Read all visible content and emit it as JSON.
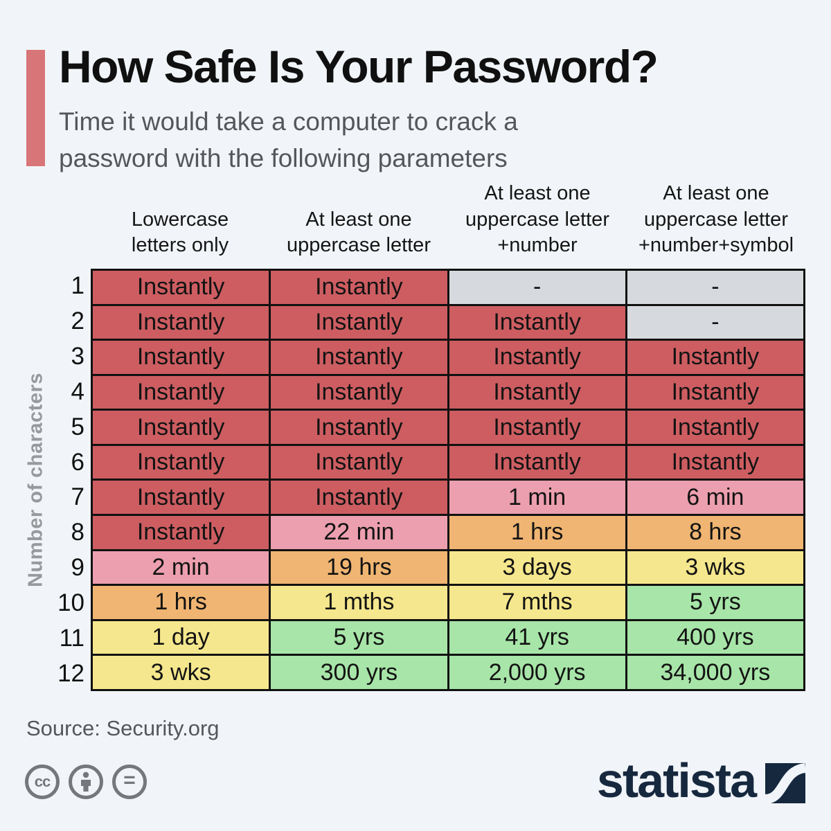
{
  "header": {
    "title": "How Safe Is Your Password?",
    "subtitle": "Time it would take a computer to crack a\npassword with the following parameters",
    "accent_color": "#d87578"
  },
  "chart_data": {
    "type": "table",
    "title": "How Safe Is Your Password?",
    "subtitle": "Time it would take a computer to crack a password with the following parameters",
    "row_axis_label": "Number of characters",
    "columns": [
      "Lowercase letters only",
      "At least one uppercase letter",
      "At least one uppercase letter +number",
      "At least one uppercase letter +number+symbol"
    ],
    "column_headers_display": [
      "Lowercase\nletters only",
      "At least one\nuppercase letter",
      "At least one\nuppercase letter\n+number",
      "At least one\nuppercase letter\n+number+symbol"
    ],
    "row_labels": [
      "1",
      "2",
      "3",
      "4",
      "5",
      "6",
      "7",
      "8",
      "9",
      "10",
      "11",
      "12"
    ],
    "values": [
      [
        "Instantly",
        "Instantly",
        "-",
        "-"
      ],
      [
        "Instantly",
        "Instantly",
        "Instantly",
        "-"
      ],
      [
        "Instantly",
        "Instantly",
        "Instantly",
        "Instantly"
      ],
      [
        "Instantly",
        "Instantly",
        "Instantly",
        "Instantly"
      ],
      [
        "Instantly",
        "Instantly",
        "Instantly",
        "Instantly"
      ],
      [
        "Instantly",
        "Instantly",
        "Instantly",
        "Instantly"
      ],
      [
        "Instantly",
        "Instantly",
        "1 min",
        "6 min"
      ],
      [
        "Instantly",
        "22 min",
        "1 hrs",
        "8 hrs"
      ],
      [
        "2 min",
        "19 hrs",
        "3 days",
        "3 wks"
      ],
      [
        "1 hrs",
        "1 mths",
        "7 mths",
        "5 yrs"
      ],
      [
        "1 day",
        "5 yrs",
        "41 yrs",
        "400 yrs"
      ],
      [
        "3 wks",
        "300 yrs",
        "2,000 yrs",
        "34,000 yrs"
      ]
    ],
    "colors": [
      [
        "red",
        "red",
        "gray",
        "gray"
      ],
      [
        "red",
        "red",
        "red",
        "gray"
      ],
      [
        "red",
        "red",
        "red",
        "red"
      ],
      [
        "red",
        "red",
        "red",
        "red"
      ],
      [
        "red",
        "red",
        "red",
        "red"
      ],
      [
        "red",
        "red",
        "red",
        "red"
      ],
      [
        "red",
        "red",
        "pink",
        "pink"
      ],
      [
        "red",
        "pink",
        "orange",
        "orange"
      ],
      [
        "pink",
        "orange",
        "yellow",
        "yellow"
      ],
      [
        "orange",
        "yellow",
        "yellow",
        "green"
      ],
      [
        "yellow",
        "green",
        "green",
        "green"
      ],
      [
        "yellow",
        "green",
        "green",
        "green"
      ]
    ],
    "palette": {
      "red": "#cd5d61",
      "pink": "#ec9fae",
      "orange": "#f0b572",
      "yellow": "#f5e78d",
      "green": "#a7e5a8",
      "gray": "#d6dade"
    },
    "border_color": "#111111"
  },
  "footer": {
    "source": "Source: Security.org",
    "license_icons": [
      "cc-icon",
      "attribution-icon",
      "equals-icon"
    ],
    "cc_label": "cc",
    "equals_label": "=",
    "brand": "statista",
    "brand_color": "#16283e"
  }
}
